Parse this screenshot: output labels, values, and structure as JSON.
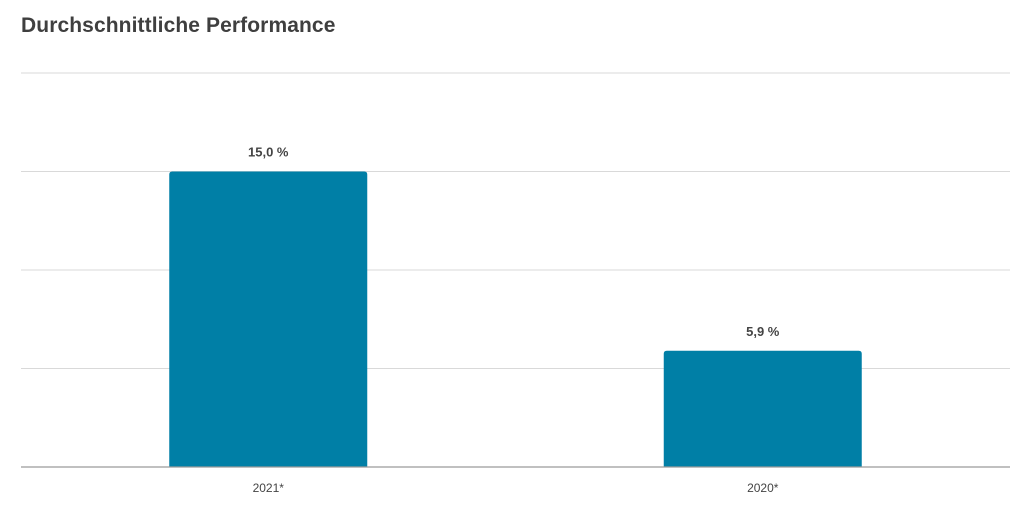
{
  "chart_data": {
    "type": "bar",
    "title": "Durchschnittliche Performance",
    "xlabel": "",
    "ylabel": "",
    "categories": [
      "2021*",
      "2020*"
    ],
    "values": [
      15.0,
      5.9
    ],
    "data_labels": [
      "15,0 %",
      "5,9 %"
    ],
    "ylim": [
      0,
      20
    ],
    "grid": true,
    "legend": "none",
    "bar_color": "#007fa6"
  }
}
